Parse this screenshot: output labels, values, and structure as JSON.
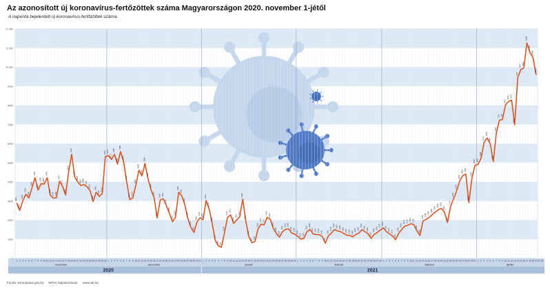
{
  "header": {
    "title": "Az azonosított új koronavírus-fertőzöttek száma Magyarországon 2020. november 1-jétől",
    "subtitle": "A naponta bejelentett új koronavírus-fertőzöttek száma:"
  },
  "footer": {
    "source": "Forrás: koronavirus.gov.hu",
    "credit": "MTVA Sajtóarchívum",
    "website": "www.mti.hu"
  },
  "colors": {
    "line": "#e0531f",
    "stripe": "#dde9f5",
    "axis_band": "#c7d6ea",
    "year_band": "#aabfdc",
    "virus_light": "#c3d6ec",
    "virus_dark": "#4f79c4"
  },
  "chart_data": {
    "type": "line",
    "title": "Az azonosított új koronavírus-fertőzöttek száma Magyarországon 2020. november 1-jétől",
    "ylim": [
      0,
      12000
    ],
    "yticks": [
      0,
      1000,
      2000,
      3000,
      4000,
      5000,
      6000,
      7000,
      8000,
      9000,
      10000,
      11000,
      12000
    ],
    "grid": true,
    "months": [
      {
        "name": "november",
        "days": 30
      },
      {
        "name": "december",
        "days": 31
      },
      {
        "name": "január",
        "days": 31
      },
      {
        "name": "február",
        "days": 28
      },
      {
        "name": "március",
        "days": 31
      },
      {
        "name": "április",
        "days": 22
      }
    ],
    "years": [
      {
        "label": "2020",
        "days": 61
      },
      {
        "label": "2021",
        "days": 112
      }
    ],
    "series": [
      {
        "values": [
          2891,
          2509,
          3006,
          3352,
          3158,
          3685,
          4225,
          3567,
          3906,
          3880,
          4216,
          3296,
          3149,
          3168,
          4032,
          3776,
          3312,
          4519,
          5439,
          4255,
          3986,
          3806,
          3856,
          3750,
          3545,
          2968,
          3461,
          3239,
          3379,
          5320,
          5376,
          5177,
          5436,
          4931,
          5586,
          5045,
          4003,
          3071,
          3159,
          3824,
          4606,
          4312,
          4966,
          4152,
          3569,
          3162,
          2116,
          3059,
          3116,
          2753,
          2345,
          1915,
          2158,
          3456,
          3282,
          2823,
          2102,
          1621,
          1352,
          1882,
          2121,
          2018,
          3024,
          2578,
          1818,
          942,
          653,
          575,
          1318,
          2140,
          2272,
          1825,
          2001,
          2171,
          3096,
          1947,
          1124,
          817,
          878,
          1542,
          1789,
          1752,
          2145,
          2043,
          1563,
          1296,
          1108,
          1391,
          1513,
          1543,
          1318,
          1268,
          1149,
          1007,
          1047,
          1392,
          1508,
          1271,
          1245,
          1232,
          1146,
          789,
          1163,
          1318,
          1508,
          1433,
          1396,
          1305,
          1208,
          1195,
          1128,
          1248,
          1314,
          1503,
          1395,
          1286,
          1045,
          1245,
          1350,
          1478,
          1594,
          1402,
          1279,
          1176,
          978,
          1296,
          1508,
          1679,
          1725,
          1810,
          1762,
          1437,
          1195,
          1952,
          2038,
          2138,
          2281,
          2420,
          2539,
          2612,
          2420,
          1871,
          2701,
          3118,
          3518,
          4049,
          4324,
          4409,
          2915,
          4184,
          4858,
          4914,
          5238,
          6070,
          6298,
          5980,
          5064,
          6557,
          7223,
          7267,
          8027,
          8212,
          8270,
          6987,
          9437,
          9875,
          9962,
          11265,
          10760,
          10498,
          9611
        ]
      }
    ]
  }
}
